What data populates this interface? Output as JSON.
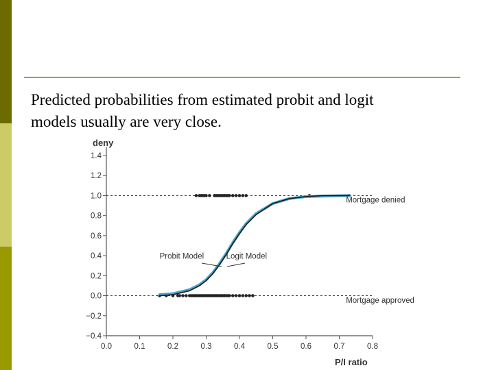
{
  "slide": {
    "caption_line1": "Predicted probabilities from estimated probit and logit",
    "caption_line2": "models usually are very close."
  },
  "colors": {
    "sidebar_dark": "#6b6b00",
    "sidebar_light": "#cccc66",
    "sidebar_mid": "#999900",
    "rule": "#b39a2c",
    "probit": "#1a1a1a",
    "logit": "#4aa3c8"
  },
  "chart_data": {
    "type": "line",
    "xlabel": "P/I ratio",
    "ylabel": "deny",
    "xlim": [
      0.0,
      0.8
    ],
    "ylim": [
      -0.4,
      1.4
    ],
    "x_ticks": [
      "0.0",
      "0.1",
      "0.2",
      "0.3",
      "0.4",
      "0.5",
      "0.6",
      "0.7",
      "0.8"
    ],
    "y_ticks": [
      "-0.4",
      "-0.2",
      "0.0",
      "0.2",
      "0.4",
      "0.6",
      "0.8",
      "1.0",
      "1.2",
      "1.4"
    ],
    "grid": false,
    "reference_lines": [
      0.0,
      1.0
    ],
    "series": [
      {
        "name": "Probit Model",
        "color": "#1a1a1a",
        "x": [
          0.16,
          0.2,
          0.25,
          0.28,
          0.3,
          0.32,
          0.34,
          0.36,
          0.38,
          0.4,
          0.42,
          0.45,
          0.5,
          0.55,
          0.6,
          0.65,
          0.73
        ],
        "y": [
          0.0,
          0.01,
          0.05,
          0.1,
          0.15,
          0.22,
          0.31,
          0.41,
          0.52,
          0.62,
          0.71,
          0.81,
          0.92,
          0.97,
          0.99,
          1.0,
          1.0
        ]
      },
      {
        "name": "Logit Model",
        "color": "#4aa3c8",
        "x": [
          0.16,
          0.2,
          0.25,
          0.28,
          0.3,
          0.32,
          0.34,
          0.36,
          0.38,
          0.4,
          0.42,
          0.45,
          0.5,
          0.55,
          0.6,
          0.65,
          0.73
        ],
        "y": [
          0.01,
          0.02,
          0.06,
          0.11,
          0.16,
          0.23,
          0.32,
          0.42,
          0.53,
          0.63,
          0.72,
          0.82,
          0.92,
          0.97,
          0.99,
          0.995,
          1.0
        ]
      }
    ],
    "points_denied": {
      "y": 1.0,
      "x": [
        0.27,
        0.28,
        0.285,
        0.29,
        0.295,
        0.3,
        0.31,
        0.325,
        0.33,
        0.335,
        0.34,
        0.345,
        0.35,
        0.355,
        0.36,
        0.365,
        0.37,
        0.38,
        0.39,
        0.4,
        0.41,
        0.42,
        0.61,
        0.73
      ]
    },
    "points_approved": {
      "y": 0.0,
      "x": [
        0.16,
        0.18,
        0.2,
        0.215,
        0.22,
        0.23,
        0.24,
        0.25,
        0.255,
        0.26,
        0.265,
        0.27,
        0.275,
        0.28,
        0.285,
        0.29,
        0.295,
        0.3,
        0.305,
        0.31,
        0.315,
        0.32,
        0.325,
        0.33,
        0.335,
        0.34,
        0.345,
        0.35,
        0.355,
        0.36,
        0.365,
        0.37,
        0.38,
        0.39,
        0.4,
        0.41,
        0.42,
        0.43,
        0.44
      ]
    },
    "annotations": [
      {
        "text": "Mortgage denied",
        "x": 0.72,
        "y": 0.93
      },
      {
        "text": "Mortgage approved",
        "x": 0.72,
        "y": -0.07
      },
      {
        "text": "Probit Model",
        "x": 0.16,
        "y": 0.37
      },
      {
        "text": "Logit Model",
        "x": 0.36,
        "y": 0.37
      }
    ]
  }
}
